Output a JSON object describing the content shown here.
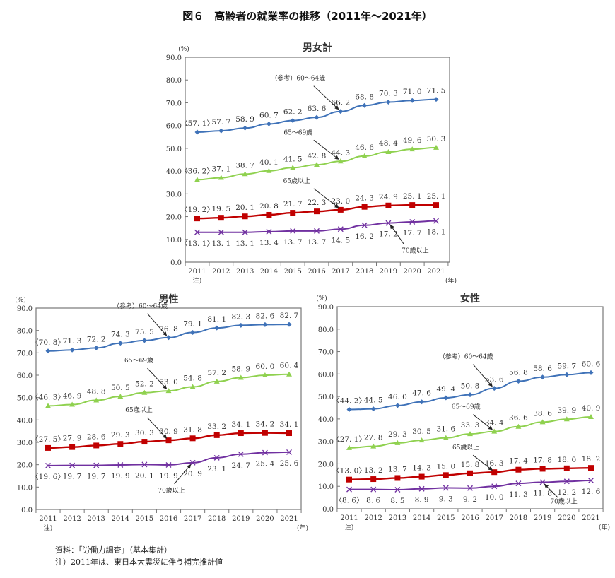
{
  "title": "図６　高齢者の就業率の推移（2011年～2021年）",
  "notes": [
    "資料：「労働力調査」（基本集計）",
    "注）2011年は、東日本大震災に伴う補完推計値"
  ],
  "chart_data": [
    {
      "type": "line",
      "title": "男女計",
      "ylabel": "(%)",
      "xlabel": "(年)",
      "x_note": "注)",
      "ylim": [
        0,
        90
      ],
      "yticks": [
        "0.0",
        "10.0",
        "20.0",
        "30.0",
        "40.0",
        "50.0",
        "60.0",
        "70.0",
        "80.0",
        "90.0"
      ],
      "categories": [
        "2011",
        "2012",
        "2013",
        "2014",
        "2015",
        "2016",
        "2017",
        "2018",
        "2019",
        "2020",
        "2021"
      ],
      "series": [
        {
          "name": "（参考）60～64歳",
          "color": "#3f72b8",
          "marker": "diamond",
          "values": [
            57.1,
            57.7,
            58.9,
            60.7,
            62.2,
            63.6,
            66.2,
            68.8,
            70.3,
            71.0,
            71.5
          ]
        },
        {
          "name": "65～69歳",
          "color": "#8fd14f",
          "marker": "triangle",
          "values": [
            36.2,
            37.1,
            38.7,
            40.1,
            41.5,
            42.8,
            44.3,
            46.6,
            48.4,
            49.6,
            50.3
          ]
        },
        {
          "name": "65歳以上",
          "color": "#c00000",
          "marker": "square",
          "values": [
            19.2,
            19.5,
            20.1,
            20.8,
            21.7,
            22.3,
            23.0,
            24.3,
            24.9,
            25.1,
            25.1
          ]
        },
        {
          "name": "70歳以上",
          "color": "#7030a0",
          "marker": "x",
          "values": [
            13.1,
            13.1,
            13.1,
            13.4,
            13.7,
            13.7,
            14.5,
            16.2,
            17.2,
            17.7,
            18.1
          ]
        }
      ]
    },
    {
      "type": "line",
      "title": "男性",
      "ylabel": "(%)",
      "xlabel": "(年)",
      "x_note": "注)",
      "ylim": [
        0,
        90
      ],
      "yticks": [
        "0.0",
        "10.0",
        "20.0",
        "30.0",
        "40.0",
        "50.0",
        "60.0",
        "70.0",
        "80.0",
        "90.0"
      ],
      "categories": [
        "2011",
        "2012",
        "2013",
        "2014",
        "2015",
        "2016",
        "2017",
        "2018",
        "2019",
        "2020",
        "2021"
      ],
      "series": [
        {
          "name": "（参考）60～64歳",
          "color": "#3f72b8",
          "marker": "diamond",
          "values": [
            70.8,
            71.3,
            72.2,
            74.3,
            75.5,
            76.8,
            79.1,
            81.1,
            82.3,
            82.6,
            82.7
          ]
        },
        {
          "name": "65～69歳",
          "color": "#8fd14f",
          "marker": "triangle",
          "values": [
            46.3,
            46.9,
            48.8,
            50.5,
            52.2,
            53.0,
            54.8,
            57.2,
            58.9,
            60.0,
            60.4
          ]
        },
        {
          "name": "65歳以上",
          "color": "#c00000",
          "marker": "square",
          "values": [
            27.5,
            27.9,
            28.6,
            29.3,
            30.3,
            30.9,
            31.8,
            33.2,
            34.1,
            34.2,
            34.1
          ]
        },
        {
          "name": "70歳以上",
          "color": "#7030a0",
          "marker": "x",
          "values": [
            19.6,
            19.7,
            19.7,
            19.9,
            20.1,
            19.9,
            20.9,
            23.1,
            24.7,
            25.4,
            25.6
          ]
        }
      ]
    },
    {
      "type": "line",
      "title": "女性",
      "ylabel": "(%)",
      "xlabel": "(年)",
      "x_note": "注)",
      "ylim": [
        0,
        90
      ],
      "yticks": [
        "0.0",
        "10.0",
        "20.0",
        "30.0",
        "40.0",
        "50.0",
        "60.0",
        "70.0",
        "80.0",
        "90.0"
      ],
      "categories": [
        "2011",
        "2012",
        "2013",
        "2014",
        "2015",
        "2016",
        "2017",
        "2018",
        "2019",
        "2020",
        "2021"
      ],
      "series": [
        {
          "name": "（参考）60～64歳",
          "color": "#3f72b8",
          "marker": "diamond",
          "values": [
            44.2,
            44.5,
            46.0,
            47.6,
            49.4,
            50.8,
            53.6,
            56.8,
            58.6,
            59.7,
            60.6
          ]
        },
        {
          "name": "65～69歳",
          "color": "#8fd14f",
          "marker": "triangle",
          "values": [
            27.1,
            27.8,
            29.3,
            30.5,
            31.6,
            33.3,
            34.4,
            36.6,
            38.6,
            39.9,
            40.9
          ]
        },
        {
          "name": "65歳以上",
          "color": "#c00000",
          "marker": "square",
          "values": [
            13.0,
            13.2,
            13.7,
            14.3,
            15.0,
            15.8,
            16.3,
            17.4,
            17.8,
            18.0,
            18.2
          ]
        },
        {
          "name": "70歳以上",
          "color": "#7030a0",
          "marker": "x",
          "values": [
            8.6,
            8.6,
            8.5,
            8.9,
            9.3,
            9.2,
            10.0,
            11.3,
            11.8,
            12.2,
            12.6
          ]
        }
      ]
    }
  ]
}
